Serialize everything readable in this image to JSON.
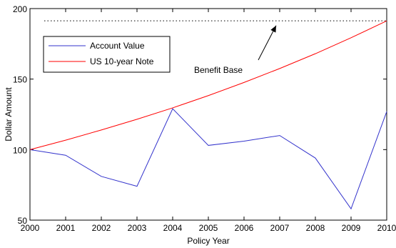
{
  "chart_data": {
    "type": "line",
    "xlabel": "Policy Year",
    "ylabel": "Dollar Amount",
    "xlim": [
      2000,
      2010
    ],
    "ylim": [
      50,
      200
    ],
    "x": [
      2000,
      2001,
      2002,
      2003,
      2004,
      2005,
      2006,
      2007,
      2008,
      2009,
      2010
    ],
    "xticks": [
      "2000",
      "2001",
      "2002",
      "2003",
      "2004",
      "2005",
      "2006",
      "2007",
      "2008",
      "2009",
      "2010"
    ],
    "yticks": [
      "50",
      "100",
      "150",
      "200"
    ],
    "series": [
      {
        "name": "Account Value",
        "color": "#3333cc",
        "values": [
          100,
          96,
          81,
          74,
          129,
          103,
          106,
          110,
          94,
          58,
          127
        ]
      },
      {
        "name": "US 10-year Note",
        "color": "#ff0000",
        "values": [
          100,
          106.7,
          113.9,
          121.5,
          129.6,
          138.3,
          147.6,
          157.5,
          168.0,
          179.3,
          191.3
        ]
      }
    ],
    "reference_line": {
      "label": "Benefit Base",
      "value": 191.3,
      "style": "dotted",
      "color": "#000000"
    },
    "annotation": {
      "text": "Benefit Base",
      "arrow_to": {
        "x": 2006.9,
        "y": 190
      }
    },
    "legend": {
      "placement": "top-left",
      "box": true
    },
    "grid": false
  }
}
